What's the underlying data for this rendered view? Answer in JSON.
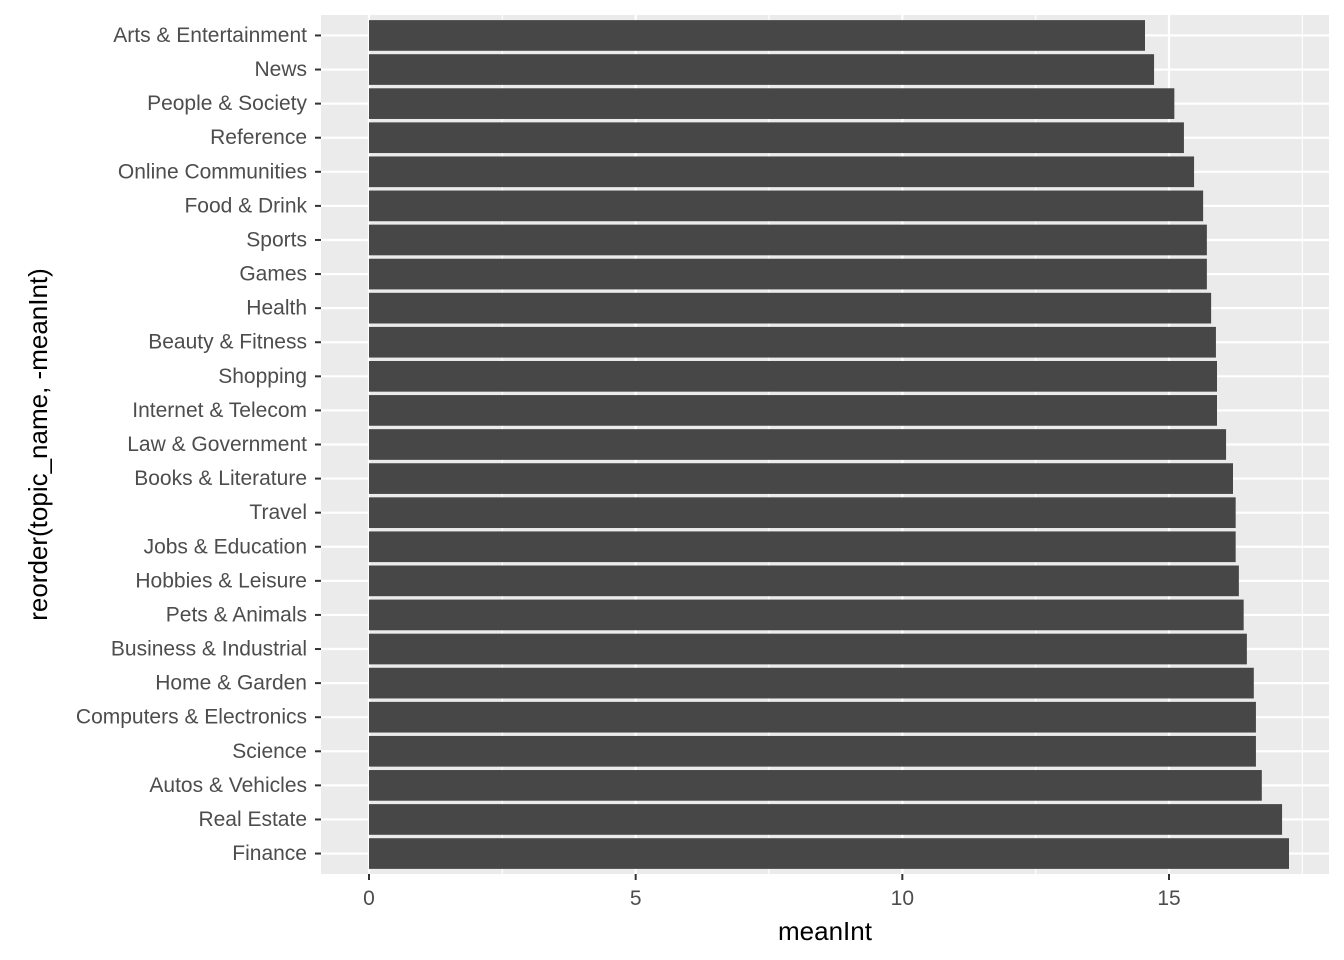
{
  "chart_data": {
    "type": "bar",
    "orientation": "horizontal",
    "xlabel": "meanInt",
    "ylabel": "reorder(topic_name, -meanInt)",
    "xlim": [
      -0.9,
      18.0
    ],
    "xticks": [
      0,
      5,
      10,
      15
    ],
    "grid": true,
    "legend": "none",
    "bar_color": "#474747",
    "panel_color": "#ebebeb",
    "categories": [
      "Arts & Entertainment",
      "News",
      "People & Society",
      "Reference",
      "Online Communities",
      "Food & Drink",
      "Sports",
      "Games",
      "Health",
      "Beauty & Fitness",
      "Shopping",
      "Internet & Telecom",
      "Law & Government",
      "Books & Literature",
      "Travel",
      "Jobs & Education",
      "Hobbies & Leisure",
      "Pets & Animals",
      "Business & Industrial",
      "Home & Garden",
      "Computers & Electronics",
      "Science",
      "Autos & Vehicles",
      "Real Estate",
      "Finance"
    ],
    "values": [
      14.55,
      14.72,
      15.1,
      15.28,
      15.47,
      15.64,
      15.71,
      15.71,
      15.79,
      15.88,
      15.9,
      15.9,
      16.07,
      16.2,
      16.25,
      16.25,
      16.31,
      16.4,
      16.46,
      16.59,
      16.63,
      16.63,
      16.74,
      17.12,
      17.25
    ]
  }
}
